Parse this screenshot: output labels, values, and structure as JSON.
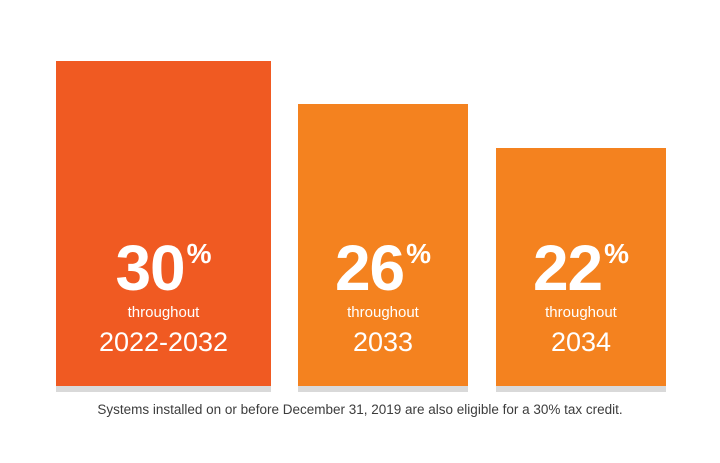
{
  "chart_data": {
    "type": "bar",
    "categories": [
      "2022-2032",
      "2033",
      "2034"
    ],
    "values": [
      30,
      26,
      22
    ],
    "value_suffix": "%",
    "bar_caption": "throughout",
    "ylim": [
      0,
      30
    ],
    "grid": false,
    "colors": [
      "#f05a22",
      "#f4821f",
      "#f4821f"
    ]
  },
  "footnote": "Systems installed on or before December 31, 2019 are also eligible for a 30% tax credit."
}
